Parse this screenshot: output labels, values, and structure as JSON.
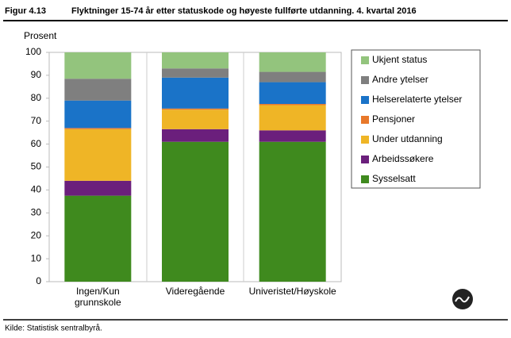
{
  "chart_data": {
    "type": "stacked_bar",
    "figure_label": "Figur 4.13",
    "title": "Flyktninger 15-74 år etter statuskode og høyeste fullførte utdanning. 4. kvartal 2016",
    "y_label": "Prosent",
    "source": "Kilde: Statistisk sentralbyrå.",
    "categories": [
      "Ingen/Kun grunnskole",
      "Videregående",
      "Univeristet/Høyskole"
    ],
    "series": [
      {
        "name": "Sysselsatt",
        "color": "#3f8a1e",
        "values": [
          37.5,
          61,
          61
        ]
      },
      {
        "name": "Arbeidssøkere",
        "color": "#6b1f7c",
        "values": [
          6.5,
          5.5,
          5
        ]
      },
      {
        "name": "Under utdanning",
        "color": "#efb526",
        "values": [
          22.5,
          8.5,
          11
        ]
      },
      {
        "name": "Pensjoner",
        "color": "#e8782a",
        "values": [
          0.5,
          0.5,
          0.5
        ]
      },
      {
        "name": "Helserelaterte ytelser",
        "color": "#1a73c8",
        "values": [
          12,
          13.5,
          9.5
        ]
      },
      {
        "name": "Andre ytelser",
        "color": "#7f7f7f",
        "values": [
          9.5,
          4,
          4.5
        ]
      },
      {
        "name": "Ukjent status",
        "color": "#93c47d",
        "values": [
          11.5,
          7,
          8.5
        ]
      }
    ],
    "ylim": [
      0,
      100
    ],
    "yticks": [
      0,
      10,
      20,
      30,
      40,
      50,
      60,
      70,
      80,
      90,
      100
    ],
    "grid": false
  }
}
